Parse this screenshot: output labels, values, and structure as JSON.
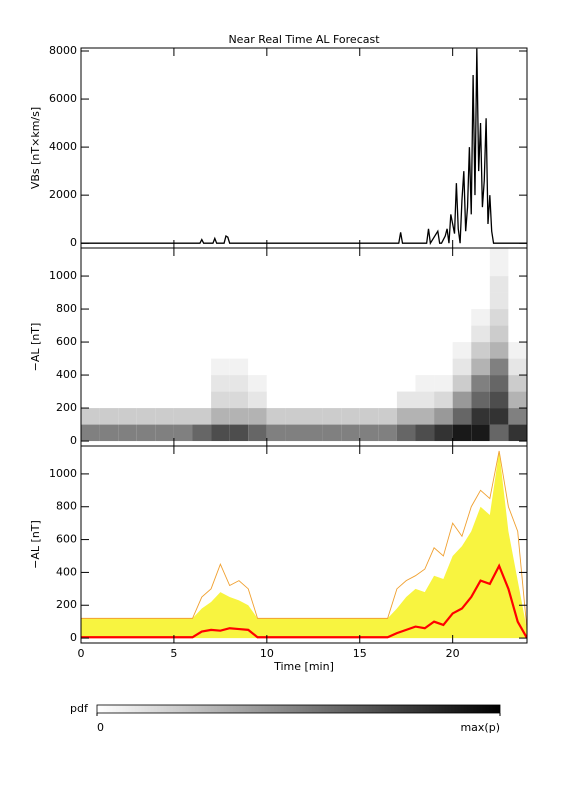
{
  "chart_data": [
    {
      "type": "line",
      "title": "Near Real Time AL Forecast",
      "ylabel": "VBs [nT×km/s]",
      "xlim": [
        0,
        24
      ],
      "xticks": [
        0,
        5,
        10,
        15,
        20
      ],
      "ylim": [
        -200,
        8125
      ],
      "yticks": [
        0,
        2000,
        4000,
        6000,
        8000
      ],
      "color": "#000000",
      "x": [
        0,
        6.4,
        6.5,
        6.6,
        7.1,
        7.2,
        7.3,
        7.7,
        7.8,
        7.9,
        8.0,
        8.1,
        17.0,
        17.1,
        17.2,
        17.3,
        18.6,
        18.7,
        18.8,
        19.2,
        19.3,
        19.4,
        19.6,
        19.7,
        19.8,
        19.9,
        20.0,
        20.1,
        20.2,
        20.3,
        20.4,
        20.5,
        20.6,
        20.7,
        20.8,
        20.9,
        21.0,
        21.1,
        21.2,
        21.3,
        21.4,
        21.5,
        21.6,
        21.7,
        21.8,
        21.9,
        22.0,
        22.1,
        22.2,
        22.3,
        24
      ],
      "values": [
        0,
        0,
        150,
        0,
        0,
        200,
        0,
        0,
        300,
        250,
        0,
        0,
        0,
        0,
        450,
        0,
        0,
        600,
        0,
        500,
        0,
        0,
        300,
        600,
        0,
        1200,
        800,
        400,
        2500,
        600,
        0,
        1800,
        3000,
        500,
        1500,
        4000,
        1200,
        7000,
        2000,
        8100,
        3000,
        5000,
        1500,
        2600,
        5200,
        800,
        2000,
        500,
        0,
        0,
        0
      ]
    },
    {
      "type": "heatmap",
      "ylabel": "−AL [nT]",
      "xlim": [
        0,
        24
      ],
      "xticks": [
        0,
        5,
        10,
        15,
        20
      ],
      "ylim": [
        -30,
        1170
      ],
      "yticks": [
        0,
        200,
        400,
        600,
        800,
        1000
      ],
      "x_bins": [
        0,
        1,
        2,
        3,
        4,
        5,
        6,
        7,
        8,
        9,
        10,
        11,
        12,
        13,
        14,
        15,
        16,
        17,
        18,
        19,
        20,
        21,
        22,
        23,
        24
      ],
      "y_bins": [
        0,
        100,
        200,
        300,
        400,
        500,
        600,
        700,
        800,
        900,
        1000,
        1100,
        1200
      ],
      "z": [
        [
          0.5,
          0.2,
          0,
          0,
          0,
          0,
          0,
          0,
          0,
          0,
          0,
          0
        ],
        [
          0.5,
          0.2,
          0,
          0,
          0,
          0,
          0,
          0,
          0,
          0,
          0,
          0
        ],
        [
          0.5,
          0.2,
          0,
          0,
          0,
          0,
          0,
          0,
          0,
          0,
          0,
          0
        ],
        [
          0.5,
          0.2,
          0,
          0,
          0,
          0,
          0,
          0,
          0,
          0,
          0,
          0
        ],
        [
          0.5,
          0.2,
          0,
          0,
          0,
          0,
          0,
          0,
          0,
          0,
          0,
          0
        ],
        [
          0.5,
          0.2,
          0,
          0,
          0,
          0,
          0,
          0,
          0,
          0,
          0,
          0
        ],
        [
          0.6,
          0.2,
          0,
          0,
          0,
          0,
          0,
          0,
          0,
          0,
          0,
          0
        ],
        [
          0.7,
          0.3,
          0.15,
          0.1,
          0.05,
          0,
          0,
          0,
          0,
          0,
          0,
          0
        ],
        [
          0.7,
          0.3,
          0.15,
          0.1,
          0.05,
          0,
          0,
          0,
          0,
          0,
          0,
          0
        ],
        [
          0.6,
          0.3,
          0.1,
          0.05,
          0,
          0,
          0,
          0,
          0,
          0,
          0,
          0
        ],
        [
          0.5,
          0.2,
          0,
          0,
          0,
          0,
          0,
          0,
          0,
          0,
          0,
          0
        ],
        [
          0.5,
          0.2,
          0,
          0,
          0,
          0,
          0,
          0,
          0,
          0,
          0,
          0
        ],
        [
          0.5,
          0.2,
          0,
          0,
          0,
          0,
          0,
          0,
          0,
          0,
          0,
          0
        ],
        [
          0.5,
          0.2,
          0,
          0,
          0,
          0,
          0,
          0,
          0,
          0,
          0,
          0
        ],
        [
          0.5,
          0.2,
          0,
          0,
          0,
          0,
          0,
          0,
          0,
          0,
          0,
          0
        ],
        [
          0.5,
          0.2,
          0,
          0,
          0,
          0,
          0,
          0,
          0,
          0,
          0,
          0
        ],
        [
          0.5,
          0.2,
          0,
          0,
          0,
          0,
          0,
          0,
          0,
          0,
          0,
          0
        ],
        [
          0.6,
          0.3,
          0.1,
          0,
          0,
          0,
          0,
          0,
          0,
          0,
          0,
          0
        ],
        [
          0.7,
          0.3,
          0.1,
          0.05,
          0,
          0,
          0,
          0,
          0,
          0,
          0,
          0
        ],
        [
          0.8,
          0.4,
          0.15,
          0.05,
          0,
          0,
          0,
          0,
          0,
          0,
          0,
          0
        ],
        [
          0.9,
          0.6,
          0.4,
          0.2,
          0.1,
          0.05,
          0,
          0,
          0,
          0,
          0,
          0
        ],
        [
          0.9,
          0.8,
          0.6,
          0.5,
          0.3,
          0.2,
          0.1,
          0.05,
          0,
          0,
          0,
          0
        ],
        [
          0.6,
          0.8,
          0.7,
          0.6,
          0.5,
          0.3,
          0.2,
          0.15,
          0.1,
          0.1,
          0.05,
          0.05
        ],
        [
          0.8,
          0.5,
          0.3,
          0.2,
          0.1,
          0.05,
          0,
          0,
          0,
          0,
          0,
          0
        ]
      ],
      "colorbar": {
        "label": "pdf",
        "ticks": [
          0,
          {
            "value": 1,
            "label": "max(p)"
          }
        ]
      }
    },
    {
      "type": "band",
      "ylabel": "−AL [nT]",
      "xlabel": "Time [min]",
      "xlim": [
        0,
        24
      ],
      "xticks": [
        0,
        5,
        10,
        15,
        20
      ],
      "ylim": [
        -30,
        1170
      ],
      "yticks": [
        0,
        200,
        400,
        600,
        800,
        1000
      ],
      "x": [
        0,
        0.5,
        1,
        1.5,
        2,
        2.5,
        3,
        3.5,
        4,
        4.5,
        5,
        5.5,
        6,
        6.5,
        7,
        7.5,
        8,
        8.5,
        9,
        9.5,
        10,
        10.5,
        11,
        11.5,
        12,
        12.5,
        13,
        13.5,
        14,
        14.5,
        15,
        15.5,
        16,
        16.5,
        17,
        17.5,
        18,
        18.5,
        19,
        19.5,
        20,
        20.5,
        21,
        21.5,
        22,
        22.5,
        23,
        23.5,
        24
      ],
      "band": {
        "color": "#f8f440",
        "lower": [
          0,
          0,
          0,
          0,
          0,
          0,
          0,
          0,
          0,
          0,
          0,
          0,
          0,
          0,
          0,
          0,
          0,
          0,
          0,
          0,
          0,
          0,
          0,
          0,
          0,
          0,
          0,
          0,
          0,
          0,
          0,
          0,
          0,
          0,
          0,
          0,
          0,
          0,
          0,
          0,
          0,
          0,
          0,
          0,
          0,
          0,
          0,
          0,
          0
        ],
        "upper": [
          120,
          120,
          120,
          120,
          120,
          120,
          120,
          120,
          120,
          120,
          120,
          120,
          120,
          180,
          220,
          280,
          250,
          230,
          200,
          120,
          120,
          120,
          120,
          120,
          120,
          120,
          120,
          120,
          120,
          120,
          120,
          120,
          120,
          120,
          180,
          250,
          300,
          280,
          380,
          360,
          500,
          560,
          650,
          800,
          750,
          1140,
          650,
          350,
          50
        ]
      },
      "series": [
        {
          "color": "#f0a030",
          "values": [
            120,
            120,
            120,
            120,
            120,
            120,
            120,
            120,
            120,
            120,
            120,
            120,
            120,
            250,
            300,
            450,
            320,
            350,
            300,
            120,
            120,
            120,
            120,
            120,
            120,
            120,
            120,
            120,
            120,
            120,
            120,
            120,
            120,
            120,
            300,
            350,
            380,
            420,
            550,
            500,
            700,
            620,
            800,
            900,
            850,
            1140,
            800,
            650,
            50
          ]
        },
        {
          "color": "#ff0000",
          "values": [
            5,
            5,
            5,
            5,
            5,
            5,
            5,
            5,
            5,
            5,
            5,
            5,
            5,
            40,
            50,
            45,
            60,
            55,
            50,
            5,
            5,
            5,
            5,
            5,
            5,
            5,
            5,
            5,
            5,
            5,
            5,
            5,
            5,
            5,
            30,
            50,
            70,
            60,
            100,
            80,
            150,
            180,
            250,
            350,
            330,
            440,
            300,
            100,
            0
          ]
        }
      ]
    }
  ]
}
